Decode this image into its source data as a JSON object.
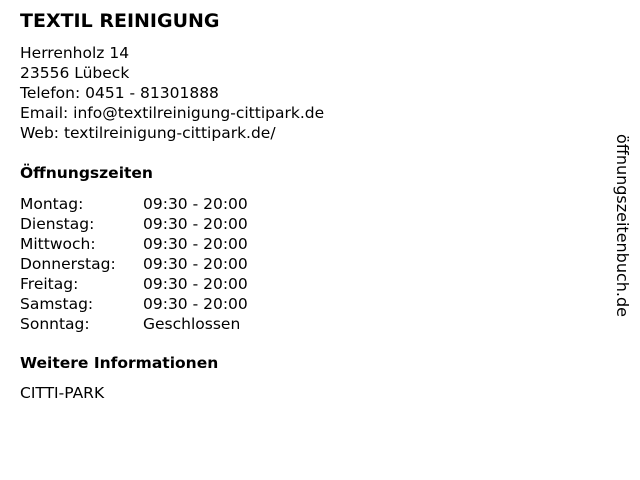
{
  "title": "TEXTIL REINIGUNG",
  "address": [
    "Herrenholz 14",
    "23556 Lübeck",
    "Telefon: 0451 - 81301888",
    "Email: info@textilreinigung-cittipark.de",
    "Web: textilreinigung-cittipark.de/"
  ],
  "hours_heading": "Öffnungszeiten",
  "hours": [
    {
      "day": "Montag:",
      "time": "09:30 - 20:00"
    },
    {
      "day": "Dienstag:",
      "time": "09:30 - 20:00"
    },
    {
      "day": "Mittwoch:",
      "time": "09:30 - 20:00"
    },
    {
      "day": "Donnerstag:",
      "time": "09:30 - 20:00"
    },
    {
      "day": "Freitag:",
      "time": "09:30 - 20:00"
    },
    {
      "day": "Samstag:",
      "time": "09:30 - 20:00"
    },
    {
      "day": "Sonntag:",
      "time": "Geschlossen"
    }
  ],
  "info_heading": "Weitere Informationen",
  "info": "CITTI-PARK",
  "watermark": "öffnungszeitenbuch.de"
}
